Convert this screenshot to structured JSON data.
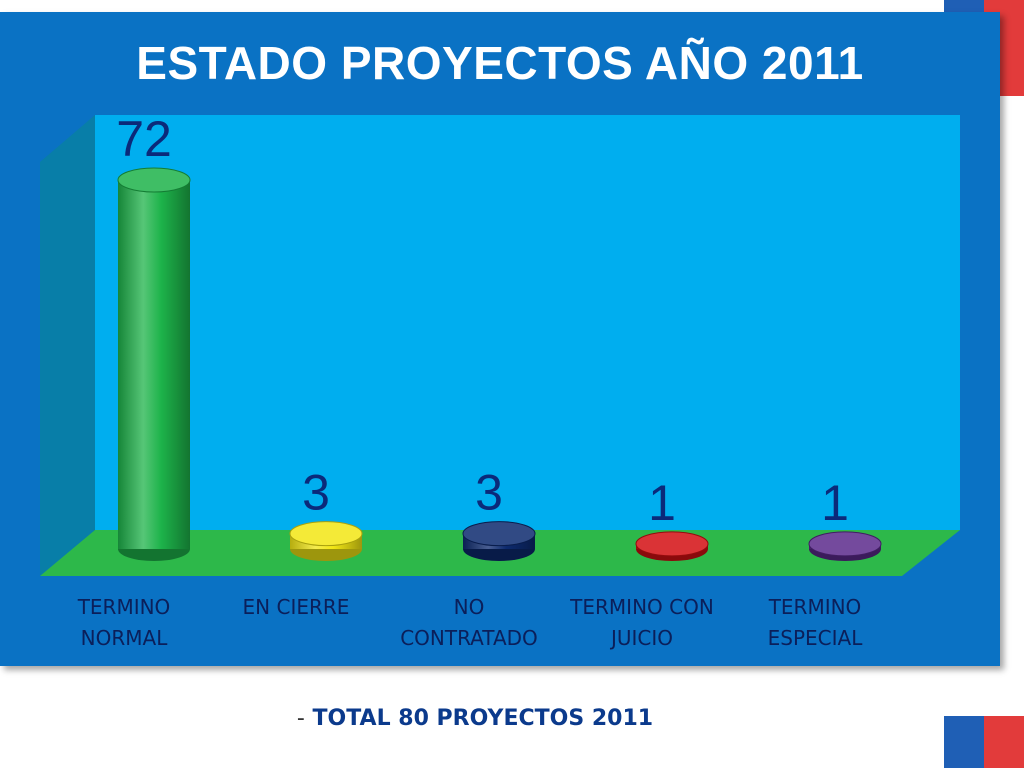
{
  "title": "ESTADO PROYECTOS AÑO 2011",
  "footnote": {
    "dash": "-",
    "text": "TOTAL 80 PROYECTOS 2011"
  },
  "colors": {
    "panel": "#0a72c4",
    "plot_back": "#00aeef",
    "floor": "#2db84a",
    "side_wall": "#087ea8",
    "data_label": "#0b2a7a"
  },
  "chart_data": {
    "type": "bar",
    "style": "3d-cylinder",
    "title": "ESTADO PROYECTOS AÑO 2011",
    "categories": [
      "TERMINO\nNORMAL",
      "EN CIERRE",
      "NO\nCONTRATADO",
      "TERMINO CON\nJUICIO",
      "TERMINO\nESPECIAL"
    ],
    "values": [
      72,
      3,
      3,
      1,
      1
    ],
    "data_labels": [
      "72",
      "3",
      "3",
      "1",
      "1"
    ],
    "bar_colors": [
      "#1db34a",
      "#f2e614",
      "#0d2a6e",
      "#d40f12",
      "#5b2a8c"
    ],
    "ylim": [
      0,
      72
    ],
    "grid": false,
    "legend": "none"
  }
}
